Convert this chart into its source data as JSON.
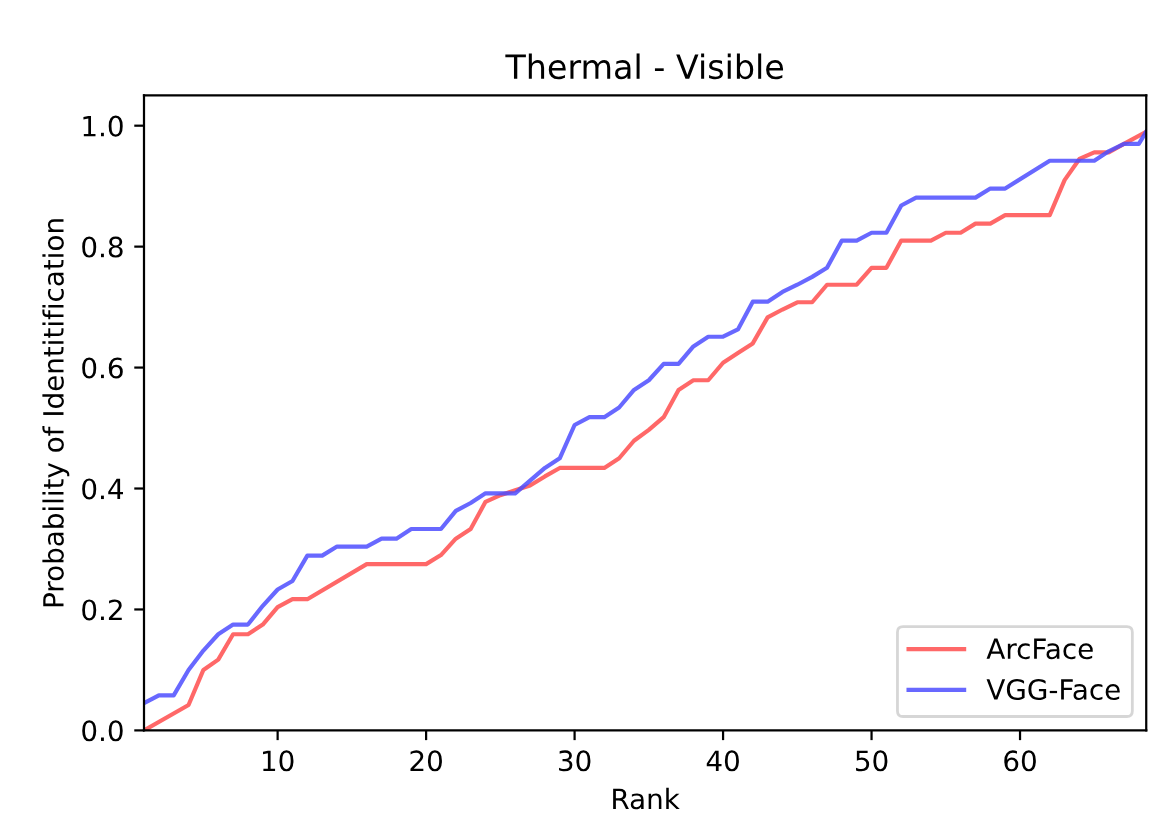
{
  "chart_data": {
    "type": "line",
    "title": "Thermal - Visible",
    "xlabel": "Rank",
    "ylabel": "Probability of Identitification",
    "xlim": [
      1,
      68.5
    ],
    "ylim": [
      0,
      1.05
    ],
    "xticks": [
      10,
      20,
      30,
      40,
      50,
      60
    ],
    "yticks": [
      {
        "value": 0,
        "label": "0.0"
      },
      {
        "value": 0.2,
        "label": "0.2"
      },
      {
        "value": 0.4,
        "label": "0.4"
      },
      {
        "value": 0.6,
        "label": "0.6"
      },
      {
        "value": 0.8,
        "label": "0.8"
      },
      {
        "value": 1,
        "label": "1.0"
      }
    ],
    "legend": "bottom right",
    "grid": false,
    "marker": "none",
    "line_style": "solid",
    "series": [
      {
        "name": "ArcFace",
        "color": "#ff4d4d",
        "x": [
          1,
          4,
          5,
          6,
          7,
          8,
          9,
          10,
          11,
          12,
          16,
          20,
          21,
          22,
          23,
          24,
          25,
          26,
          27,
          28,
          29,
          32,
          33,
          34,
          35,
          36,
          37,
          38,
          39,
          40,
          41,
          42,
          43,
          44,
          45,
          46,
          47,
          49,
          50,
          51,
          52,
          54,
          55,
          56,
          57,
          58,
          59,
          62,
          63,
          64,
          65,
          66,
          67,
          68.5
        ],
        "values": [
          0,
          0.042,
          0.1,
          0.117,
          0.159,
          0.159,
          0.175,
          0.204,
          0.217,
          0.217,
          0.275,
          0.275,
          0.29,
          0.317,
          0.333,
          0.378,
          0.389,
          0.397,
          0.405,
          0.42,
          0.434,
          0.434,
          0.45,
          0.479,
          0.497,
          0.518,
          0.563,
          0.579,
          0.579,
          0.608,
          0.624,
          0.64,
          0.683,
          0.696,
          0.708,
          0.708,
          0.737,
          0.737,
          0.765,
          0.765,
          0.81,
          0.81,
          0.823,
          0.823,
          0.838,
          0.838,
          0.852,
          0.852,
          0.91,
          0.945,
          0.956,
          0.956,
          0.97,
          0.99
        ]
      },
      {
        "name": "VGG-Face",
        "color": "#4d4dff",
        "x": [
          1,
          2,
          3,
          4,
          5,
          6,
          7,
          8,
          9,
          10,
          11,
          12,
          13,
          14,
          16,
          17,
          18,
          19,
          21,
          22,
          23,
          24,
          26,
          28,
          29,
          30,
          31,
          32,
          33,
          34,
          35,
          36,
          37,
          38,
          39,
          40,
          41,
          42,
          43,
          44,
          45,
          46,
          47,
          48,
          49,
          50,
          51,
          52,
          53,
          57,
          58,
          59,
          62,
          65,
          66,
          67,
          68,
          68.5
        ],
        "values": [
          0.045,
          0.058,
          0.058,
          0.1,
          0.132,
          0.159,
          0.175,
          0.175,
          0.206,
          0.233,
          0.247,
          0.289,
          0.289,
          0.304,
          0.304,
          0.317,
          0.317,
          0.333,
          0.333,
          0.363,
          0.376,
          0.392,
          0.392,
          0.434,
          0.45,
          0.505,
          0.518,
          0.518,
          0.534,
          0.563,
          0.579,
          0.606,
          0.606,
          0.635,
          0.651,
          0.651,
          0.663,
          0.709,
          0.709,
          0.725,
          0.737,
          0.75,
          0.765,
          0.81,
          0.81,
          0.823,
          0.823,
          0.868,
          0.881,
          0.881,
          0.896,
          0.896,
          0.942,
          0.942,
          0.958,
          0.97,
          0.97,
          0.99
        ]
      }
    ]
  }
}
